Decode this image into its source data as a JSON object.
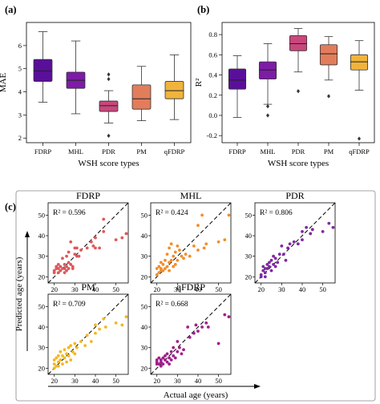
{
  "panels": {
    "a": "(a)",
    "b": "(b)",
    "c": "(c)"
  },
  "colors": {
    "FDRP": "#5a0f9a",
    "MHL": "#7d1ca6",
    "PDR": "#c9477c",
    "PM": "#e27d5c",
    "qFDRP": "#f0b43d"
  },
  "chart_data": [
    {
      "type": "box",
      "panel": "(a)",
      "xlabel": "WSH score types",
      "ylabel": "MAE",
      "categories": [
        "FDRP",
        "MHL",
        "PDR",
        "PM",
        "qFDRP"
      ],
      "ylim": [
        1.8,
        7.0
      ],
      "yticks": [
        2,
        3,
        4,
        5,
        6
      ],
      "boxes": [
        {
          "min": 3.55,
          "q1": 4.45,
          "median": 4.9,
          "q3": 5.4,
          "max": 6.6,
          "outliers": []
        },
        {
          "min": 3.05,
          "q1": 4.15,
          "median": 4.5,
          "q3": 4.85,
          "max": 6.2,
          "outliers": []
        },
        {
          "min": 2.65,
          "q1": 3.15,
          "median": 3.4,
          "q3": 3.6,
          "max": 4.05,
          "outliers": [
            4.55,
            4.75,
            2.1
          ]
        },
        {
          "min": 2.75,
          "q1": 3.25,
          "median": 3.7,
          "q3": 4.3,
          "max": 5.1,
          "outliers": []
        },
        {
          "min": 2.8,
          "q1": 3.7,
          "median": 4.05,
          "q3": 4.45,
          "max": 5.6,
          "outliers": []
        }
      ]
    },
    {
      "type": "box",
      "panel": "(b)",
      "xlabel": "WSH score types",
      "ylabel": "R²",
      "categories": [
        "FDRP",
        "MHL",
        "PDR",
        "PM",
        "qFDRP"
      ],
      "ylim": [
        -0.27,
        0.92
      ],
      "yticks": [
        -0.2,
        0.0,
        0.2,
        0.4,
        0.6,
        0.8
      ],
      "ytick_labels": [
        "-0.2",
        "0.0",
        "0.2",
        "0.4",
        "0.6",
        "0.8"
      ],
      "boxes": [
        {
          "min": -0.02,
          "q1": 0.26,
          "median": 0.35,
          "q3": 0.46,
          "max": 0.59,
          "outliers": []
        },
        {
          "min": 0.11,
          "q1": 0.36,
          "median": 0.45,
          "q3": 0.53,
          "max": 0.71,
          "outliers": [
            0.09,
            0.0
          ]
        },
        {
          "min": 0.43,
          "q1": 0.64,
          "median": 0.71,
          "q3": 0.79,
          "max": 0.86,
          "outliers": [
            0.24
          ]
        },
        {
          "min": 0.35,
          "q1": 0.5,
          "median": 0.61,
          "q3": 0.7,
          "max": 0.78,
          "outliers": [
            0.19
          ]
        },
        {
          "min": 0.25,
          "q1": 0.45,
          "median": 0.53,
          "q3": 0.6,
          "max": 0.74,
          "outliers": [
            -0.23
          ]
        }
      ]
    },
    {
      "type": "scatter",
      "panel": "(c)",
      "xlabel": "Actual age (years)",
      "ylabel": "Predicted age (years)",
      "xlim": [
        17,
        56
      ],
      "ylim": [
        17,
        56
      ],
      "xticks": [
        20,
        30,
        40,
        50
      ],
      "yticks": [
        20,
        30,
        40,
        50
      ],
      "subplots": [
        {
          "title": "FDRP",
          "r2": "R² = 0.596",
          "color": "#e15759",
          "points": [
            [
              20,
              23
            ],
            [
              21,
              24
            ],
            [
              21,
              25
            ],
            [
              22,
              26
            ],
            [
              22,
              24
            ],
            [
              23,
              23
            ],
            [
              23,
              25
            ],
            [
              24,
              29
            ],
            [
              24,
              24
            ],
            [
              25,
              24
            ],
            [
              25,
              26
            ],
            [
              25,
              22
            ],
            [
              26,
              30
            ],
            [
              26,
              25
            ],
            [
              26,
              23
            ],
            [
              27,
              27
            ],
            [
              27,
              24
            ],
            [
              27,
              32
            ],
            [
              28,
              26
            ],
            [
              28,
              37
            ],
            [
              29,
              24
            ],
            [
              29,
              25
            ],
            [
              30,
              34
            ],
            [
              30,
              31
            ],
            [
              31,
              30
            ],
            [
              31,
              34
            ],
            [
              32,
              30
            ],
            [
              33,
              33
            ],
            [
              36,
              34
            ],
            [
              38,
              37
            ],
            [
              39,
              35
            ],
            [
              40,
              34
            ],
            [
              40,
              39
            ],
            [
              42,
              34
            ],
            [
              44,
              42
            ],
            [
              44,
              48
            ],
            [
              50,
              38
            ],
            [
              53,
              39
            ],
            [
              55,
              41
            ],
            [
              20,
              22
            ],
            [
              22,
              22
            ]
          ]
        },
        {
          "title": "MHL",
          "r2": "R² = 0.424",
          "color": "#f28e2b",
          "points": [
            [
              20,
              24
            ],
            [
              21,
              25
            ],
            [
              21,
              22
            ],
            [
              22,
              27
            ],
            [
              22,
              24
            ],
            [
              23,
              26
            ],
            [
              23,
              23
            ],
            [
              24,
              28
            ],
            [
              24,
              24
            ],
            [
              25,
              25
            ],
            [
              25,
              31
            ],
            [
              26,
              27
            ],
            [
              26,
              23
            ],
            [
              26,
              34
            ],
            [
              27,
              28
            ],
            [
              27,
              36
            ],
            [
              28,
              25
            ],
            [
              28,
              30
            ],
            [
              29,
              32
            ],
            [
              29,
              26
            ],
            [
              30,
              35
            ],
            [
              30,
              28
            ],
            [
              31,
              33
            ],
            [
              32,
              30
            ],
            [
              33,
              29
            ],
            [
              34,
              31
            ],
            [
              36,
              30
            ],
            [
              38,
              35
            ],
            [
              40,
              33
            ],
            [
              40,
              45
            ],
            [
              42,
              50
            ],
            [
              43,
              34
            ],
            [
              44,
              36
            ],
            [
              50,
              37
            ],
            [
              53,
              38
            ],
            [
              55,
              50
            ],
            [
              20,
              21
            ],
            [
              22,
              23
            ]
          ]
        },
        {
          "title": "PDR",
          "r2": "R² = 0.806",
          "color": "#7e2aa0",
          "points": [
            [
              20,
              21
            ],
            [
              21,
              23
            ],
            [
              21,
              25
            ],
            [
              22,
              22
            ],
            [
              22,
              24
            ],
            [
              23,
              26
            ],
            [
              23,
              24
            ],
            [
              24,
              27
            ],
            [
              24,
              25
            ],
            [
              25,
              23
            ],
            [
              25,
              28
            ],
            [
              26,
              26
            ],
            [
              26,
              30
            ],
            [
              27,
              25
            ],
            [
              27,
              29
            ],
            [
              28,
              27
            ],
            [
              29,
              31
            ],
            [
              30,
              35
            ],
            [
              31,
              31
            ],
            [
              32,
              28
            ],
            [
              33,
              34
            ],
            [
              34,
              36
            ],
            [
              36,
              37
            ],
            [
              38,
              36
            ],
            [
              40,
              38
            ],
            [
              40,
              42
            ],
            [
              42,
              44
            ],
            [
              44,
              41
            ],
            [
              45,
              43
            ],
            [
              50,
              42
            ],
            [
              53,
              46
            ],
            [
              55,
              44
            ],
            [
              20,
              20
            ],
            [
              22,
              20
            ]
          ]
        },
        {
          "title": "PM",
          "r2": "R² = 0.709",
          "color": "#f2b821",
          "points": [
            [
              20,
              22
            ],
            [
              20,
              24
            ],
            [
              21,
              21
            ],
            [
              21,
              25
            ],
            [
              22,
              23
            ],
            [
              22,
              26
            ],
            [
              23,
              24
            ],
            [
              23,
              28
            ],
            [
              24,
              22
            ],
            [
              24,
              26
            ],
            [
              25,
              25
            ],
            [
              25,
              29
            ],
            [
              26,
              23
            ],
            [
              26,
              27
            ],
            [
              27,
              26
            ],
            [
              27,
              30
            ],
            [
              28,
              24
            ],
            [
              28,
              31
            ],
            [
              29,
              28
            ],
            [
              30,
              27
            ],
            [
              30,
              32
            ],
            [
              31,
              30
            ],
            [
              33,
              33
            ],
            [
              35,
              31
            ],
            [
              36,
              36
            ],
            [
              38,
              33
            ],
            [
              40,
              37
            ],
            [
              40,
              41
            ],
            [
              42,
              39
            ],
            [
              44,
              44
            ],
            [
              45,
              40
            ],
            [
              50,
              42
            ],
            [
              53,
              41
            ],
            [
              55,
              45
            ],
            [
              20,
              20
            ],
            [
              22,
              21
            ]
          ]
        },
        {
          "title": "qFDRP",
          "r2": "R² = 0.668",
          "color": "#a1208c",
          "points": [
            [
              20,
              23
            ],
            [
              20,
              24
            ],
            [
              21,
              22
            ],
            [
              21,
              25
            ],
            [
              22,
              24
            ],
            [
              22,
              23
            ],
            [
              23,
              25
            ],
            [
              23,
              22
            ],
            [
              24,
              24
            ],
            [
              24,
              26
            ],
            [
              25,
              23
            ],
            [
              25,
              27
            ],
            [
              26,
              25
            ],
            [
              26,
              22
            ],
            [
              27,
              24
            ],
            [
              27,
              28
            ],
            [
              28,
              26
            ],
            [
              28,
              30
            ],
            [
              29,
              25
            ],
            [
              30,
              28
            ],
            [
              30,
              33
            ],
            [
              31,
              30
            ],
            [
              32,
              27
            ],
            [
              33,
              29
            ],
            [
              35,
              40
            ],
            [
              36,
              35
            ],
            [
              38,
              37
            ],
            [
              39,
              41
            ],
            [
              40,
              38
            ],
            [
              42,
              40
            ],
            [
              44,
              42
            ],
            [
              45,
              40
            ],
            [
              50,
              32
            ],
            [
              53,
              46
            ],
            [
              55,
              45
            ],
            [
              20,
              22
            ],
            [
              22,
              21
            ]
          ]
        }
      ]
    }
  ]
}
